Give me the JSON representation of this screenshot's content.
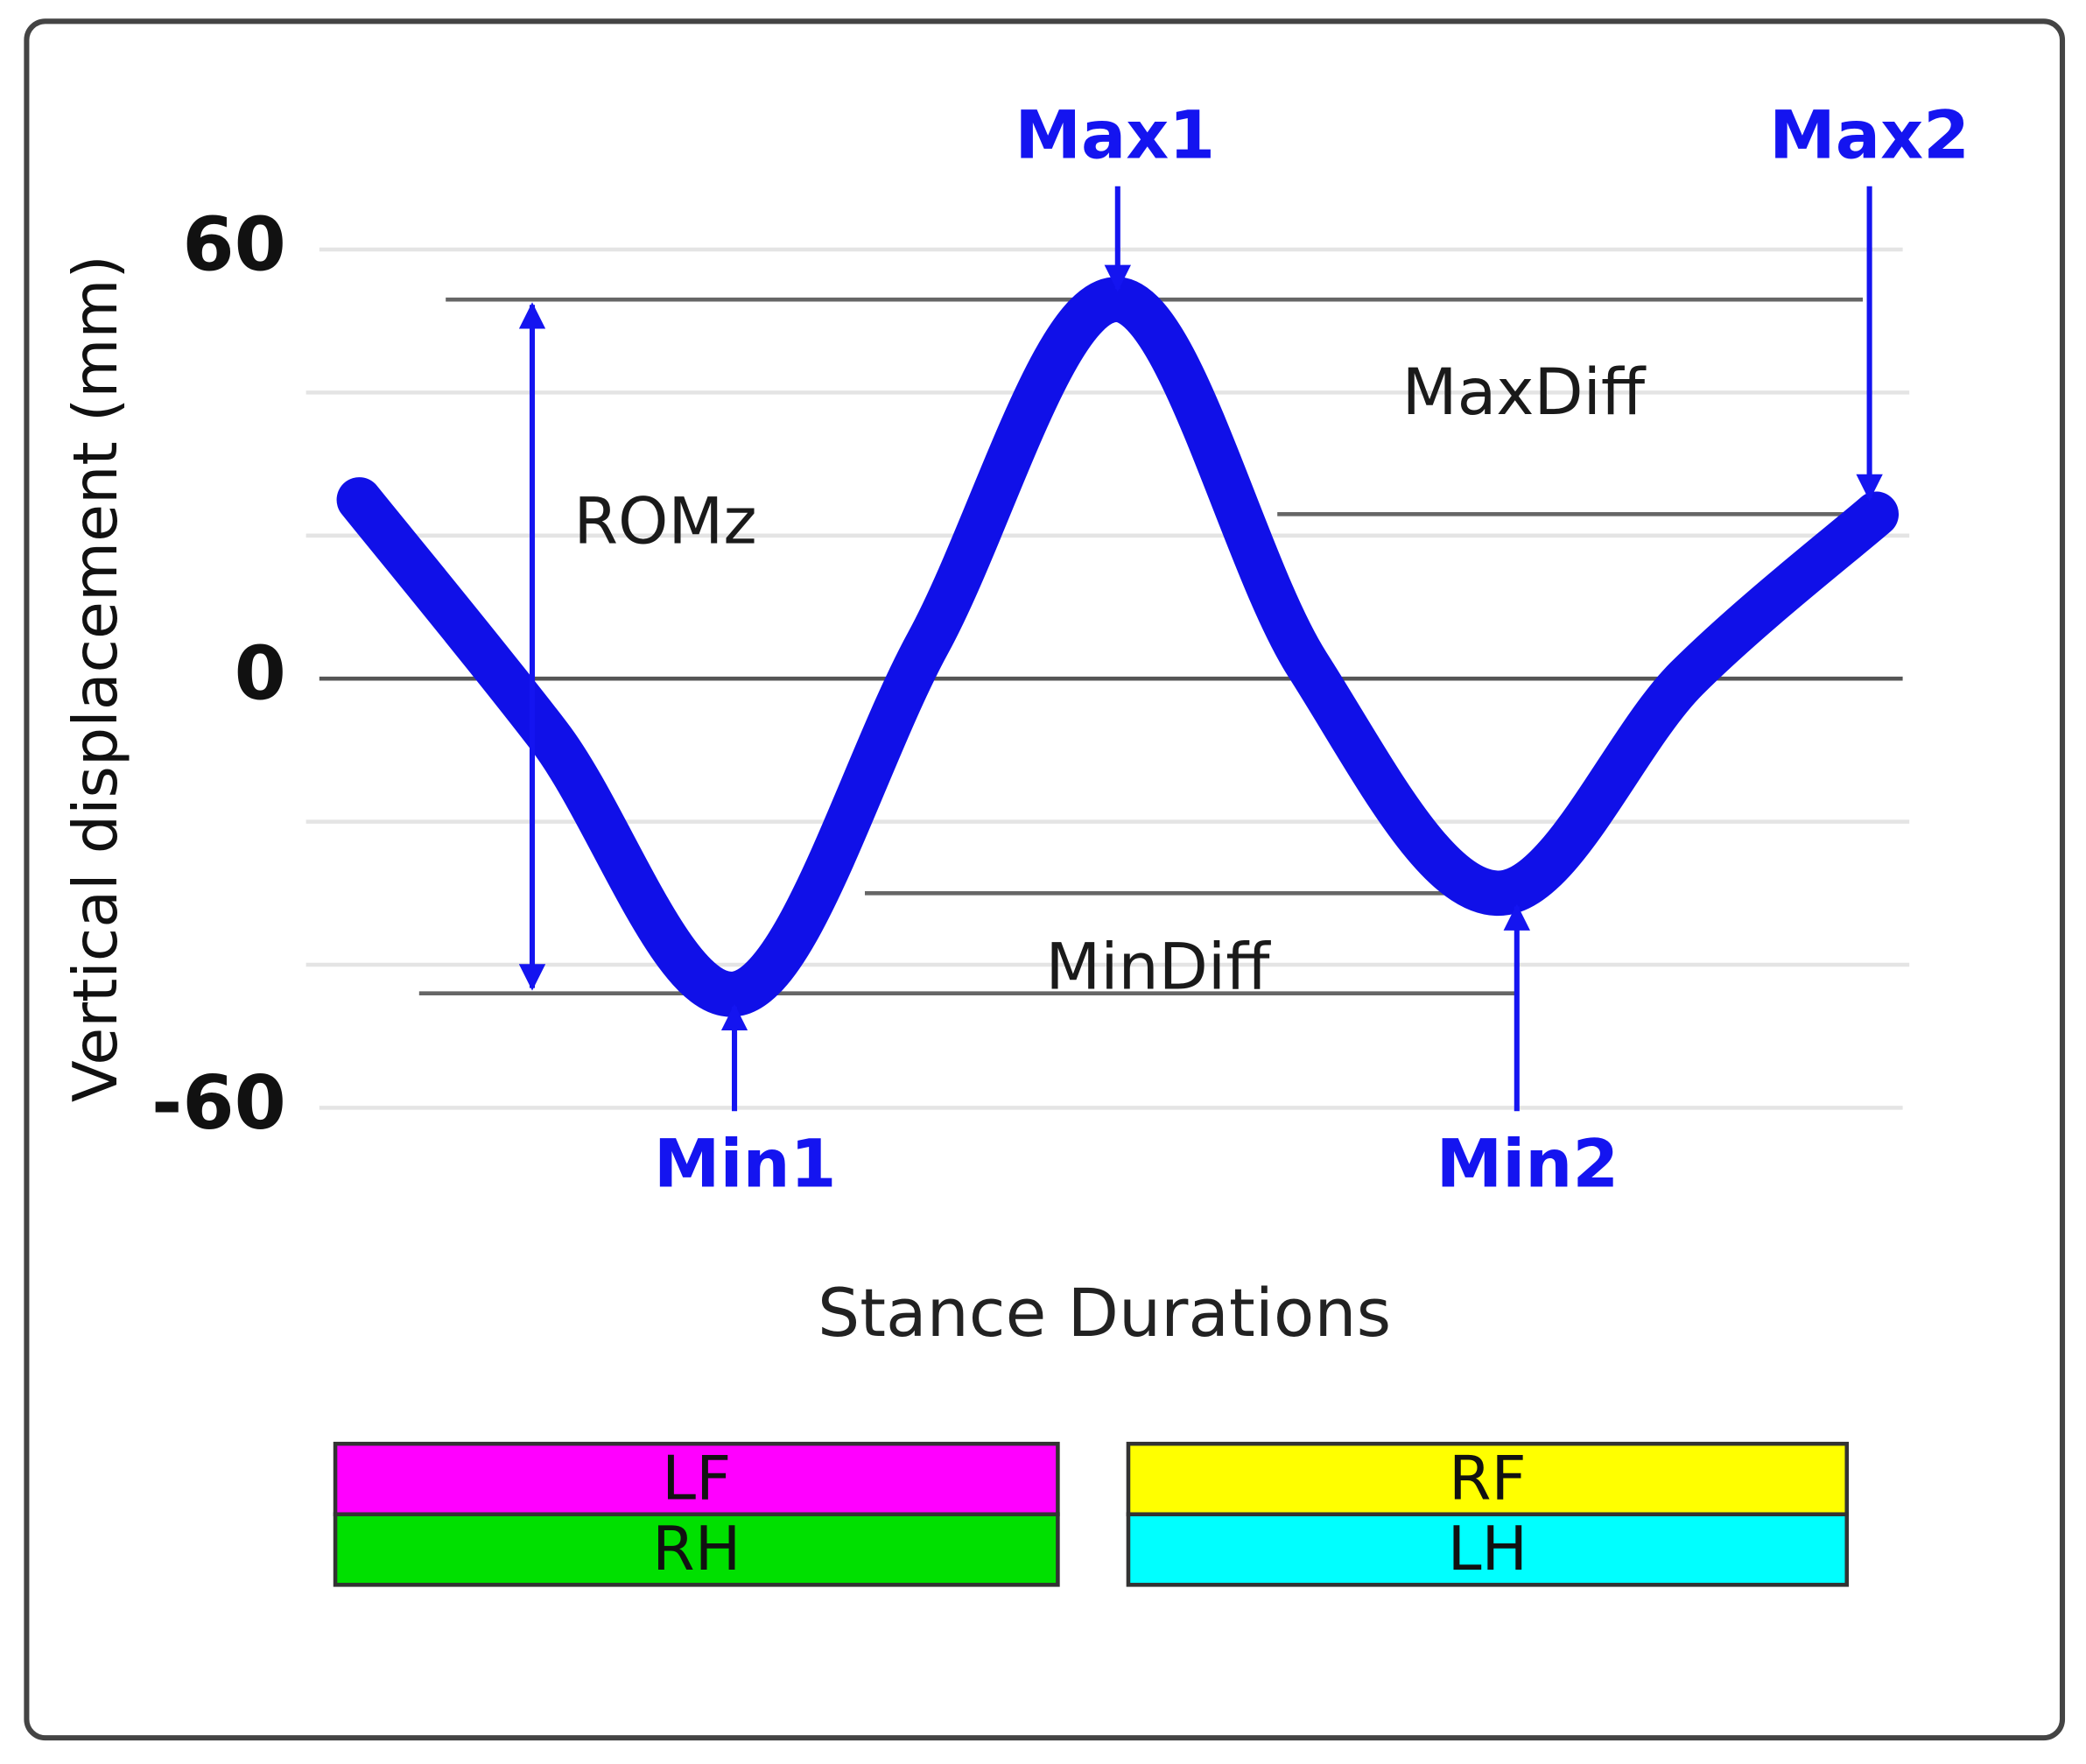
{
  "chart_data": {
    "type": "line",
    "y_label": "Vertical displacement (mm)",
    "x_label": "Stance Durations",
    "categories": [
      null,
      null,
      null,
      null,
      null,
      null,
      null,
      null,
      null
    ],
    "series": [
      {
        "color": "#1010e8",
        "values": [
          25,
          -8,
          -44,
          5,
          53,
          2,
          -30,
          0,
          23
        ]
      }
    ],
    "ylim": [
      -60,
      60
    ],
    "yticks": [
      -60,
      0,
      60
    ],
    "minor_grid": [
      -40,
      -20,
      20,
      40
    ],
    "grid": true,
    "annotations": {
      "max1": "Max1",
      "max2": "Max2",
      "min1": "Min1",
      "min2": "Min2",
      "max_diff": "MaxDiff",
      "min_diff": "MinDiff",
      "romz": "ROMz"
    },
    "stance_bars": [
      [
        {
          "label": "LF",
          "color": "#ff00ff"
        },
        {
          "label": "RH",
          "color": "#00e000"
        }
      ],
      [
        {
          "label": "RF",
          "color": "#ffff00"
        },
        {
          "label": "LH",
          "color": "#00ffff"
        }
      ]
    ]
  }
}
